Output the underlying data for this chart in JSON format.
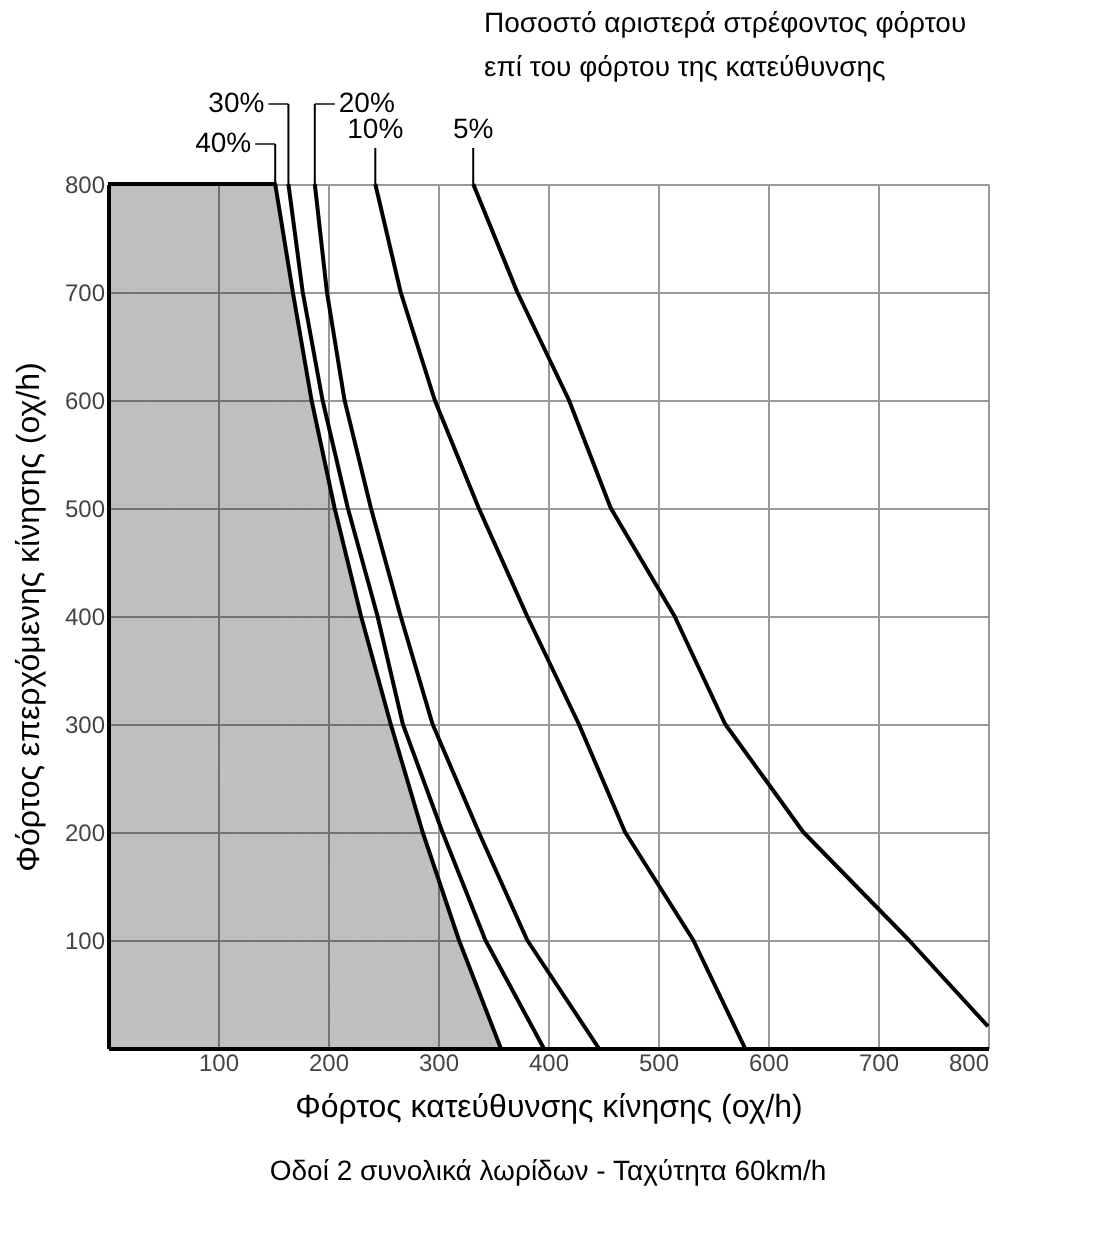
{
  "chart_data": {
    "type": "line",
    "xlabel": "Φόρτος κατεύθυνσης κίνησης (οχ/h)",
    "ylabel": "Φόρτος επερχόμενης κίνησης (οχ/h)",
    "xlim": [
      0,
      800
    ],
    "ylim": [
      0,
      800
    ],
    "xticks": [
      100,
      200,
      300,
      400,
      500,
      600,
      700,
      800
    ],
    "yticks": [
      100,
      200,
      300,
      400,
      500,
      600,
      700,
      800
    ],
    "grid": true,
    "legend": "top",
    "marker": "none",
    "line_style": "solid",
    "series": [
      {
        "name": "40%",
        "type": "area",
        "color": "#000000",
        "x": [
          0,
          152,
          168,
          185,
          206,
          230,
          257,
          286,
          319,
          357
        ],
        "values": [
          800,
          800,
          700,
          600,
          500,
          400,
          300,
          200,
          100,
          0
        ]
      },
      {
        "name": "30%",
        "color": "#000000",
        "x": [
          164,
          177,
          195,
          218,
          245,
          268,
          304,
          343,
          396
        ],
        "values": [
          800,
          700,
          600,
          500,
          400,
          300,
          200,
          100,
          0
        ]
      },
      {
        "name": "20%",
        "color": "#000000",
        "x": [
          188,
          199,
          215,
          239,
          266,
          295,
          337,
          381,
          446
        ],
        "values": [
          800,
          700,
          600,
          500,
          400,
          300,
          200,
          100,
          0
        ]
      },
      {
        "name": "10%",
        "color": "#000000",
        "x": [
          243,
          266,
          297,
          337,
          381,
          428,
          470,
          532,
          579
        ],
        "values": [
          800,
          700,
          600,
          500,
          400,
          300,
          200,
          100,
          0
        ]
      },
      {
        "name": "5%",
        "color": "#000000",
        "x": [
          332,
          372,
          419,
          457,
          515,
          561,
          632,
          728,
          800
        ],
        "values": [
          800,
          700,
          600,
          500,
          400,
          300,
          200,
          100,
          20
        ]
      }
    ],
    "annotations": [
      "Ποσοστό αριστερά στρέφοντος φόρτου",
      "επί του φόρτου της κατεύθυνσης",
      "Οδοί 2 συνολικά λωρίδων - Ταχύτητα 60km/h"
    ]
  }
}
